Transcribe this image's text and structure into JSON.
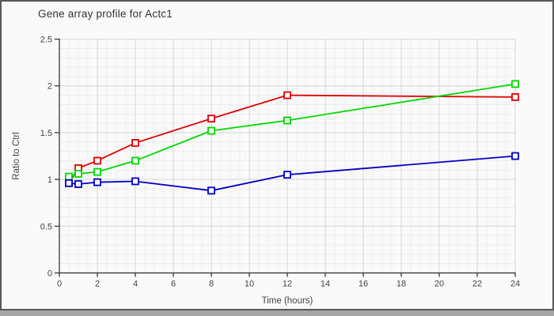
{
  "title": "Gene array profile for Actc1",
  "panel": {
    "background": "#fafafa",
    "border_color": "#58585a",
    "below_strip_color": "#a6a6a6"
  },
  "chart_data": {
    "type": "line",
    "title": "Gene array profile for Actc1",
    "xlabel": "Time (hours)",
    "ylabel": "Ratio to Ctrl",
    "xlim": [
      0,
      24
    ],
    "ylim": [
      0,
      2.5
    ],
    "x_ticks": [
      0,
      2,
      4,
      6,
      8,
      10,
      12,
      14,
      16,
      18,
      20,
      22,
      24
    ],
    "y_ticks": [
      0,
      0.5,
      1,
      1.5,
      2,
      2.5
    ],
    "y_tick_labels": [
      "0",
      "0.5",
      "1",
      "1.5",
      "2",
      "2.5"
    ],
    "x_minor_step": 0.5,
    "y_minor_step": 0.1,
    "grid": true,
    "legend_position": "none",
    "marker": "open-square",
    "x": [
      0.5,
      1,
      2,
      4,
      8,
      12,
      24
    ],
    "series": [
      {
        "name": "red",
        "color": "#e10000",
        "values": [
          0.96,
          1.12,
          1.2,
          1.39,
          1.65,
          1.9,
          1.88
        ]
      },
      {
        "name": "green",
        "color": "#00d800",
        "values": [
          1.03,
          1.06,
          1.08,
          1.2,
          1.52,
          1.63,
          2.02
        ]
      },
      {
        "name": "blue",
        "color": "#0000c8",
        "values": [
          0.96,
          0.95,
          0.97,
          0.98,
          0.88,
          1.05,
          1.25
        ]
      }
    ]
  },
  "style_colors": {
    "axis": "#2a2a2a",
    "tick_text": "#444444",
    "title_text": "#333333",
    "minor_grid": "#ededed",
    "major_grid": "#d7d7d7"
  }
}
